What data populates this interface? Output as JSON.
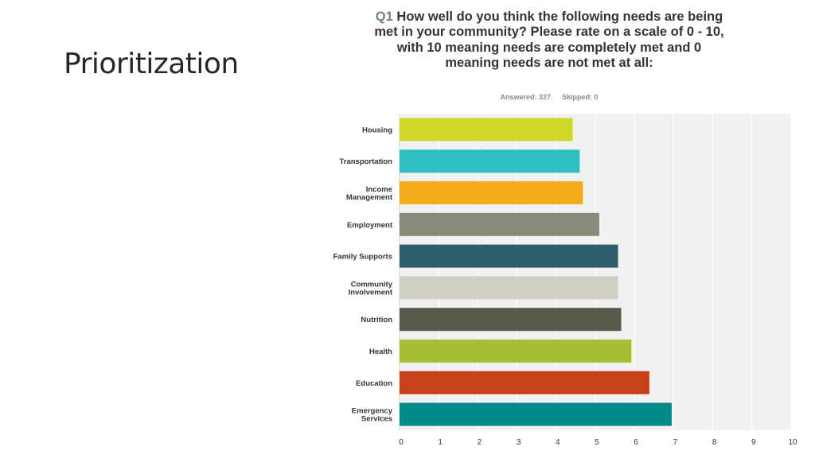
{
  "slide": {
    "title": "Prioritization"
  },
  "question": {
    "label": "Q1",
    "text": "How well do you think the following needs are being met in your community? Please rate on a scale of 0 - 10, with 10 meaning needs are completely met and 0 meaning needs are not met at all:"
  },
  "stats": {
    "answered": "Answered: 327",
    "skipped": "Skipped: 0"
  },
  "chart_data": {
    "type": "bar",
    "orientation": "horizontal",
    "title": "",
    "xlabel": "",
    "ylabel": "",
    "xlim": [
      0,
      10
    ],
    "ticks": [
      "0",
      "1",
      "2",
      "3",
      "4",
      "5",
      "6",
      "7",
      "8",
      "9",
      "10"
    ],
    "grid": true,
    "categories": [
      [
        "Housing"
      ],
      [
        "Transportation"
      ],
      [
        "Income",
        "Management"
      ],
      [
        "Employment"
      ],
      [
        "Family Supports"
      ],
      [
        "Community",
        "Involvement"
      ],
      [
        "Nutrition"
      ],
      [
        "Health"
      ],
      [
        "Education"
      ],
      [
        "Emergency",
        "Services"
      ]
    ],
    "values": [
      4.42,
      4.6,
      4.68,
      5.1,
      5.58,
      5.58,
      5.66,
      5.92,
      6.38,
      6.95
    ],
    "colors": [
      "#cfd72b",
      "#2fbfc1",
      "#f5ac1c",
      "#878a78",
      "#2c5e6b",
      "#cfcfc2",
      "#575a4a",
      "#a7bf37",
      "#c6411c",
      "#008b8a"
    ]
  }
}
